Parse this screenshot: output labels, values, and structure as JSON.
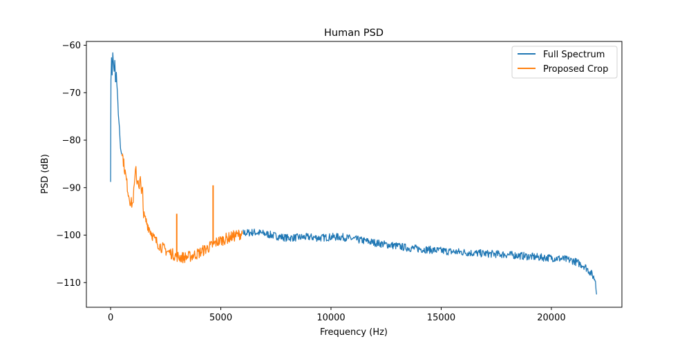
{
  "chart_data": {
    "type": "line",
    "title": "Human PSD",
    "xlabel": "Frequency (Hz)",
    "ylabel": "PSD (dB)",
    "xlim": [
      -1100,
      23200
    ],
    "ylim": [
      -115.2,
      -59.2
    ],
    "x_ticks": [
      0,
      5000,
      10000,
      15000,
      20000
    ],
    "x_tick_labels": [
      "0",
      "5000",
      "10000",
      "15000",
      "20000"
    ],
    "y_ticks": [
      -110,
      -100,
      -90,
      -80,
      -70,
      -60
    ],
    "y_tick_labels": [
      "−110",
      "−100",
      "−90",
      "−80",
      "−70",
      "−60"
    ],
    "grid": false,
    "legend_position": "top-right",
    "series": [
      {
        "name": "Full Spectrum",
        "color": "#1f77b4",
        "band_width": 0.8,
        "points": [
          [
            0,
            -88
          ],
          [
            15,
            -67
          ],
          [
            40,
            -63
          ],
          [
            70,
            -66
          ],
          [
            100,
            -62
          ],
          [
            130,
            -64
          ],
          [
            160,
            -66
          ],
          [
            190,
            -63
          ],
          [
            220,
            -68
          ],
          [
            260,
            -66
          ],
          [
            300,
            -70
          ],
          [
            350,
            -74
          ],
          [
            400,
            -78
          ],
          [
            450,
            -82
          ],
          [
            500,
            -83
          ],
          [
            6000,
            -99.6
          ],
          [
            6500,
            -99.4
          ],
          [
            7000,
            -99.7
          ],
          [
            7500,
            -100.2
          ],
          [
            8000,
            -100.6
          ],
          [
            8500,
            -100.5
          ],
          [
            9000,
            -100.4
          ],
          [
            9500,
            -100.6
          ],
          [
            10000,
            -100.4
          ],
          [
            10500,
            -100.4
          ],
          [
            11000,
            -100.8
          ],
          [
            11500,
            -101.2
          ],
          [
            12000,
            -101.6
          ],
          [
            12500,
            -102.0
          ],
          [
            13000,
            -102.3
          ],
          [
            13500,
            -102.7
          ],
          [
            14000,
            -102.9
          ],
          [
            14500,
            -103.1
          ],
          [
            15000,
            -103.3
          ],
          [
            15500,
            -103.5
          ],
          [
            16000,
            -103.6
          ],
          [
            16500,
            -103.8
          ],
          [
            17000,
            -103.9
          ],
          [
            17500,
            -104.0
          ],
          [
            18000,
            -104.1
          ],
          [
            18500,
            -104.3
          ],
          [
            19000,
            -104.5
          ],
          [
            19500,
            -104.7
          ],
          [
            20000,
            -104.8
          ],
          [
            20500,
            -105.0
          ],
          [
            21000,
            -105.4
          ],
          [
            21500,
            -106.5
          ],
          [
            21800,
            -108.0
          ],
          [
            22000,
            -109.5
          ],
          [
            22050,
            -112.5
          ]
        ]
      },
      {
        "name": "Proposed Crop",
        "color": "#ff7f0e",
        "band_width": 1.2,
        "points": [
          [
            500,
            -82
          ],
          [
            600,
            -85
          ],
          [
            700,
            -88
          ],
          [
            800,
            -91
          ],
          [
            900,
            -93
          ],
          [
            1000,
            -93.5
          ],
          [
            1050,
            -91
          ],
          [
            1100,
            -88.5
          ],
          [
            1150,
            -86
          ],
          [
            1200,
            -89
          ],
          [
            1250,
            -88
          ],
          [
            1300,
            -90
          ],
          [
            1350,
            -88
          ],
          [
            1400,
            -92
          ],
          [
            1450,
            -90
          ],
          [
            1500,
            -96
          ],
          [
            1600,
            -97
          ],
          [
            1800,
            -99
          ],
          [
            2000,
            -101
          ],
          [
            2300,
            -102.5
          ],
          [
            2600,
            -103.5
          ],
          [
            2900,
            -104.2
          ],
          [
            3000,
            -104.4
          ],
          [
            3100,
            -104.6
          ],
          [
            3300,
            -104.7
          ],
          [
            3600,
            -104.5
          ],
          [
            4000,
            -103.8
          ],
          [
            4400,
            -102.7
          ],
          [
            4600,
            -102.2
          ],
          [
            4800,
            -101.5
          ],
          [
            5200,
            -100.8
          ],
          [
            5600,
            -100.2
          ],
          [
            6000,
            -99.6
          ]
        ],
        "spikes": [
          [
            3000,
            -95.5
          ],
          [
            4650,
            -89.5
          ]
        ]
      }
    ]
  }
}
